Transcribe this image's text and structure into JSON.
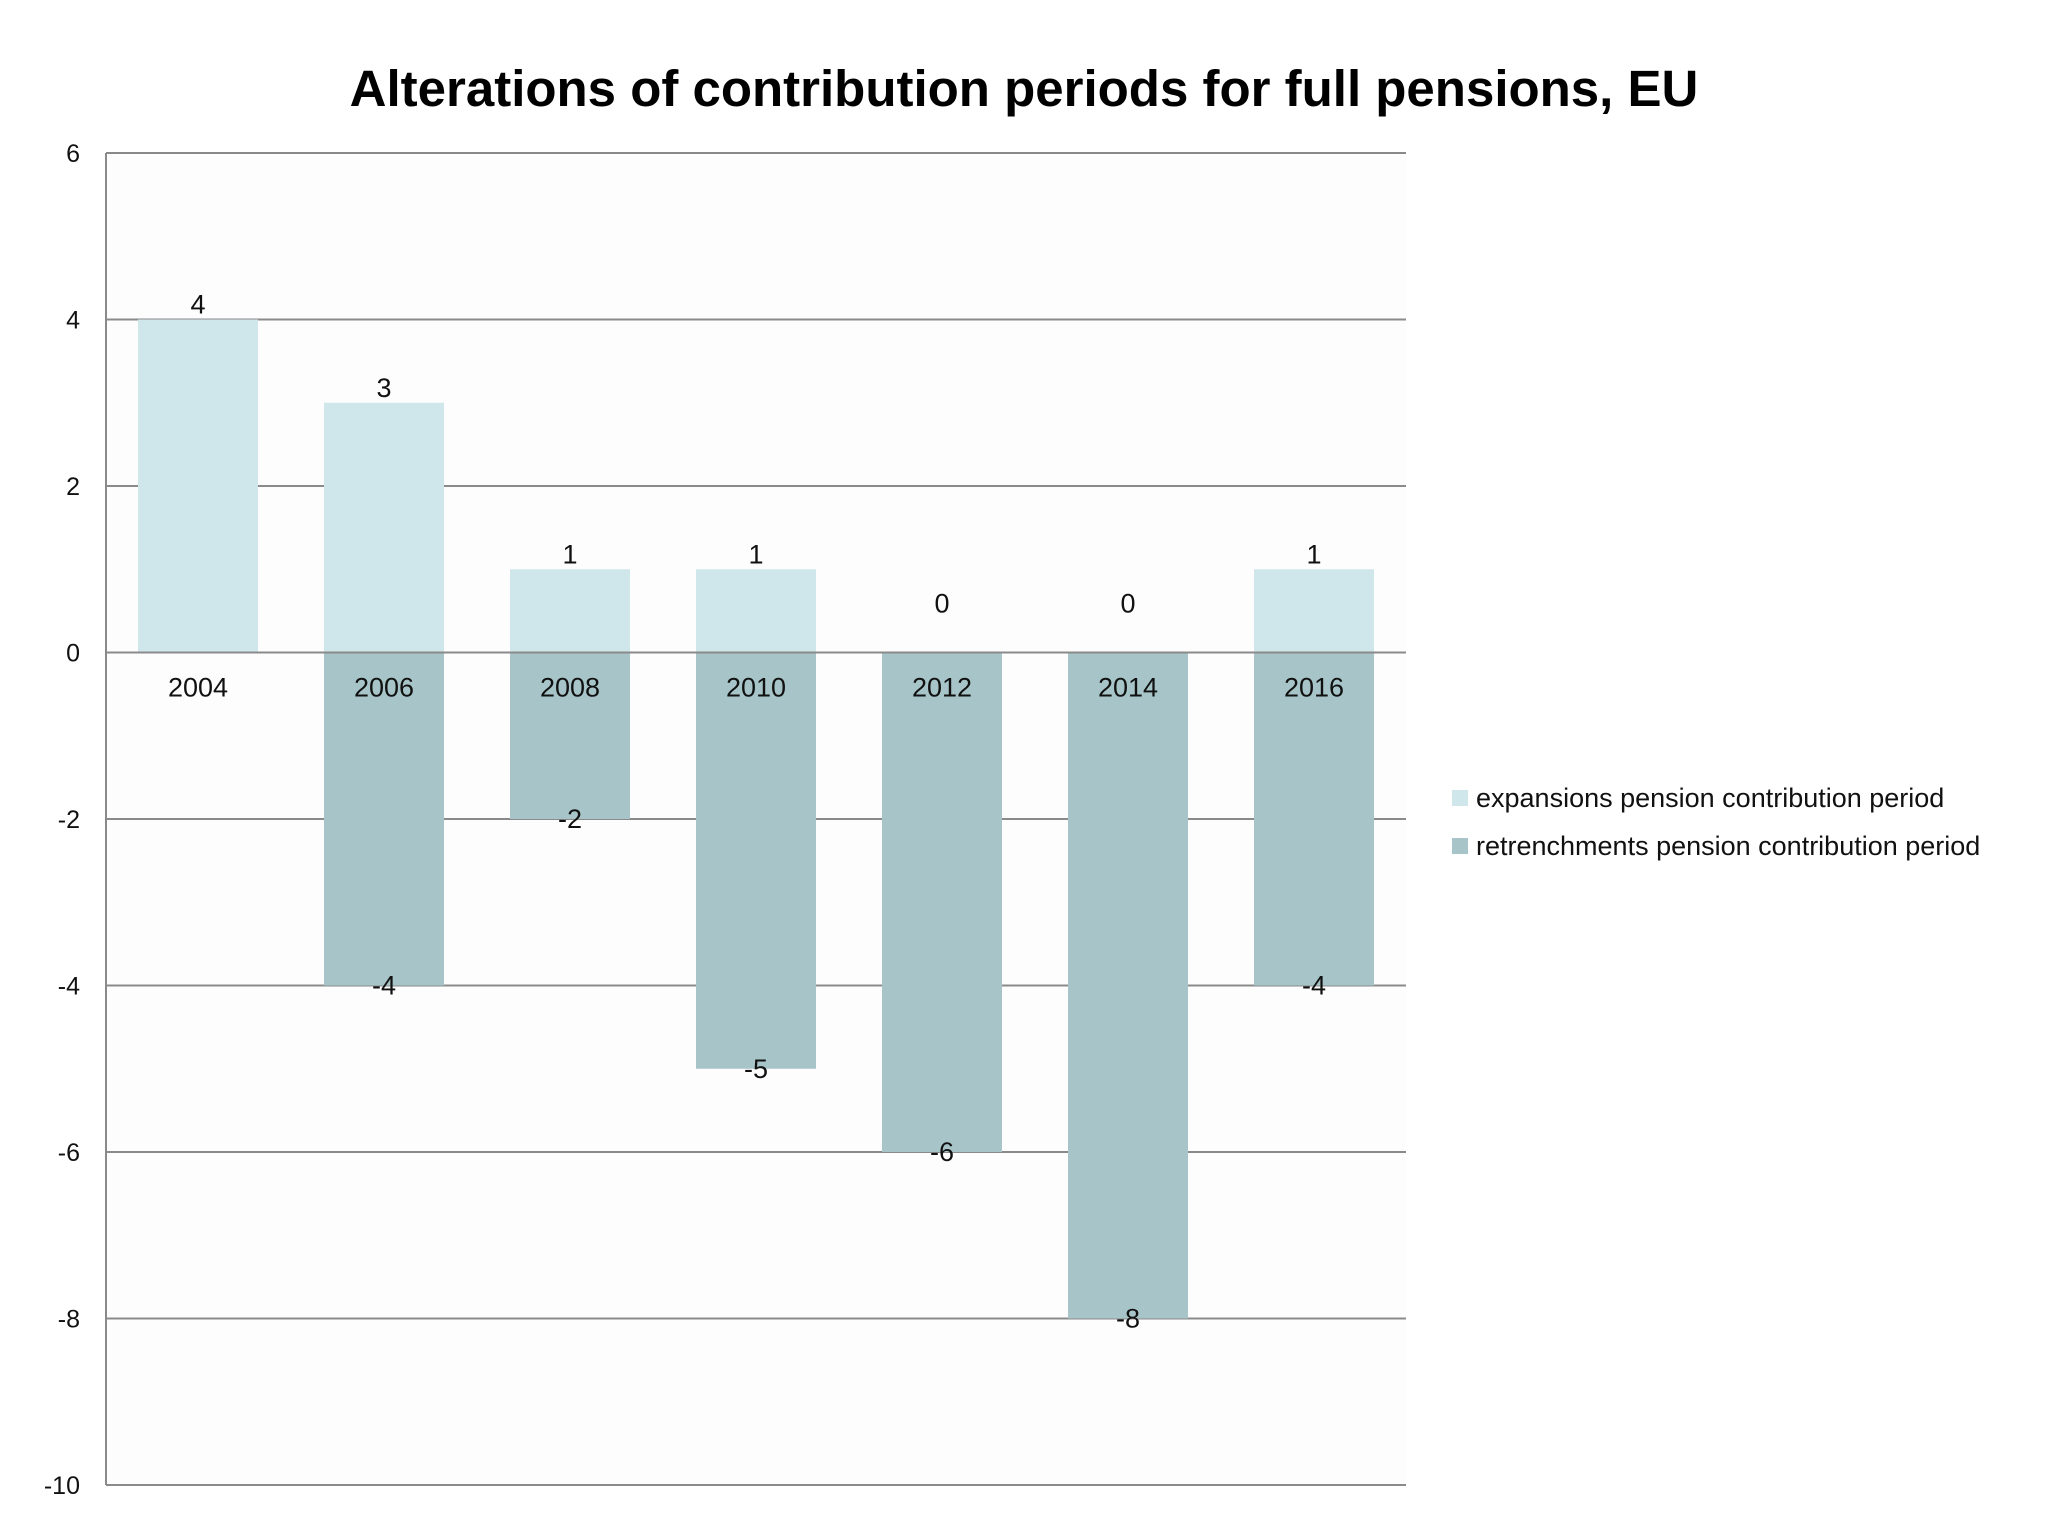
{
  "chart_data": {
    "type": "bar",
    "stacked": true,
    "title": "Alterations of contribution periods for full pensions, EU",
    "xlabel": "",
    "ylabel": "",
    "ylim": [
      -10,
      6
    ],
    "yticks": [
      6,
      4,
      2,
      0,
      -2,
      -4,
      -6,
      -8,
      -10
    ],
    "grid": true,
    "legend_position": "right",
    "categories": [
      "2004",
      "2006",
      "2008",
      "2010",
      "2012",
      "2014",
      "2016"
    ],
    "series": [
      {
        "name": "expansions pension contribution period",
        "color": "#cfe7ea",
        "values": [
          4,
          3,
          1,
          1,
          0,
          0,
          1
        ]
      },
      {
        "name": "retrenchments pension contribution period",
        "color": "#a7c5c8",
        "values": [
          0,
          -4,
          -2,
          -5,
          -6,
          -8,
          -4
        ]
      }
    ]
  }
}
